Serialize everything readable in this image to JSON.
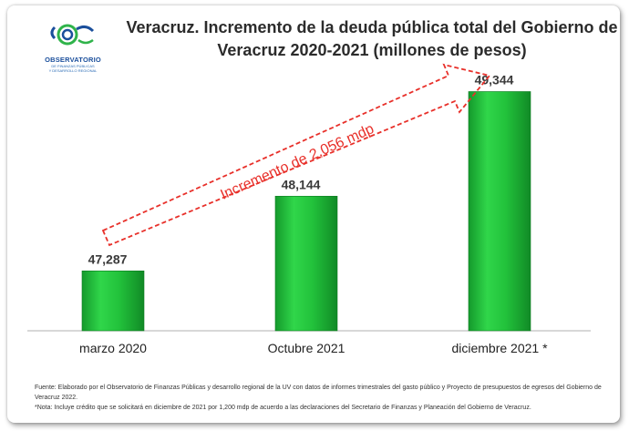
{
  "logo": {
    "main": "OBSERVATORIO",
    "sub1": "DE FINANZAS PÚBLICAS",
    "sub2": "Y DESARROLLO REGIONAL",
    "colors": {
      "blue": "#1b4f9c",
      "green": "#2fb34a"
    }
  },
  "chart_data": {
    "type": "bar",
    "title": "Veracruz. Incremento de la deuda pública total del  Gobierno de Veracruz 2020-2021 (millones de pesos)",
    "categories": [
      "marzo 2020",
      "Octubre 2021",
      "diciembre 2021 *"
    ],
    "values": [
      47287,
      48144,
      49344
    ],
    "value_labels": [
      "47,287",
      "48,144",
      "49,344"
    ],
    "ylim": [
      46600,
      49600
    ],
    "grid": false,
    "legend": "none",
    "bar_color": "#22c23b",
    "annotation": {
      "text": "Incremento de 2,056 mdp",
      "color": "#e8302a"
    }
  },
  "footnotes": {
    "source": "Fuente: Elaborado por el Observatorio de Finanzas Públicas y desarrollo regional de la UV con datos de informes trimestrales del gasto público y Proyecto de presupuestos de egresos del Gobierno de Veracruz 2022.",
    "note": "*Nota: Incluye crédito que se solicitará en diciembre de 2021 por 1,200 mdp de acuerdo a las declaraciones del Secretario de Finanzas y Planeación del Gobierno de Veracruz."
  }
}
